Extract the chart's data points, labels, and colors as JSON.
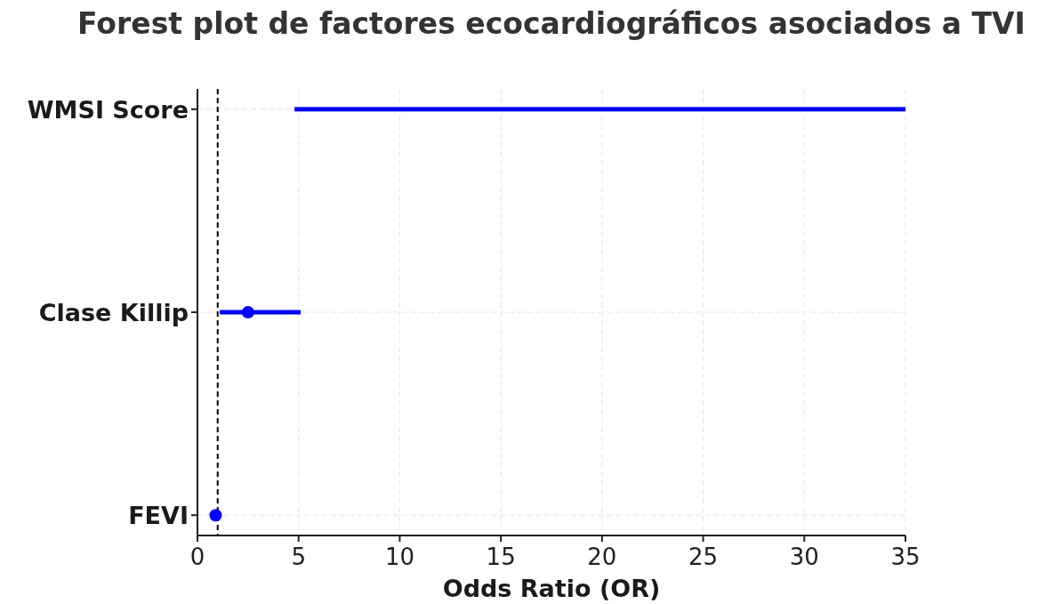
{
  "chart_data": {
    "type": "scatter",
    "orientation": "horizontal",
    "title": "Forest plot de factores ecocardiográficos asociados a TVI",
    "xlabel": "Odds Ratio (OR)",
    "categories": [
      "WMSI Score",
      "Clase Killip",
      "FEVI"
    ],
    "series": [
      {
        "type": "bar",
        "color": "#0000ff",
        "values": [
          30.2,
          null,
          null
        ],
        "base": [
          4.8,
          null,
          null
        ]
      },
      {
        "color": "#0000ff",
        "values": [
          null,
          2.5,
          0.9
        ],
        "errors": [
          null,
          [
            1.1,
            5.1
          ],
          null
        ]
      }
    ],
    "xlim": [
      0,
      35
    ],
    "xticks": [
      0,
      5,
      10,
      15,
      20,
      25,
      30,
      35
    ],
    "ref_lines": [
      {
        "axis": "x",
        "value": 1,
        "line_style": "dashed",
        "color": "#000000"
      }
    ],
    "grid": true,
    "marker": "circle"
  }
}
